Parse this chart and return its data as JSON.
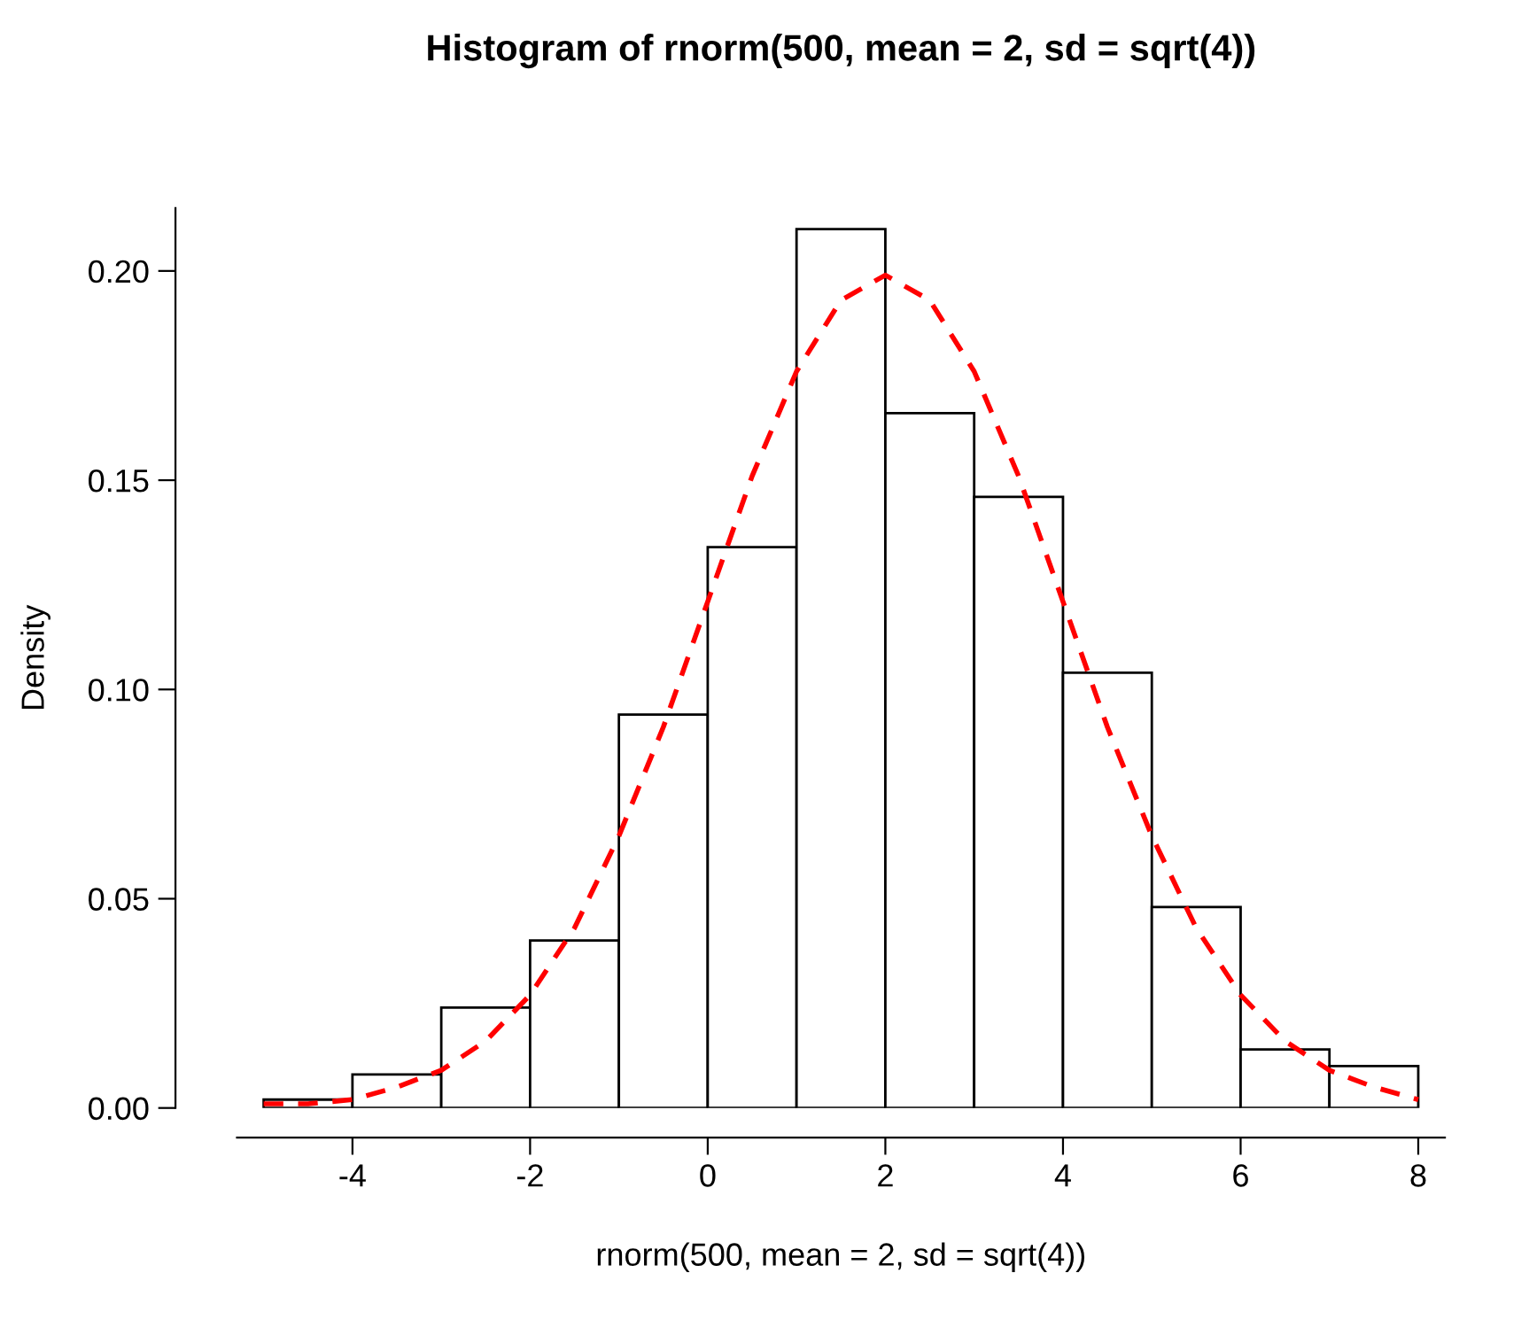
{
  "chart_data": {
    "type": "histogram",
    "title": "Histogram of rnorm(500, mean = 2, sd = sqrt(4))",
    "xlabel": "rnorm(500, mean = 2, sd = sqrt(4))",
    "ylabel": "Density",
    "bins": [
      -5,
      -4,
      -3,
      -2,
      -1,
      0,
      1,
      2,
      3,
      4,
      5,
      6,
      7,
      8
    ],
    "values": [
      0.002,
      0.008,
      0.024,
      0.04,
      0.094,
      0.134,
      0.21,
      0.166,
      0.146,
      0.104,
      0.048,
      0.014,
      0.01
    ],
    "color": "#ffffff",
    "series": [
      {
        "type": "line",
        "color": "#ff0000",
        "line_style": "dashed",
        "x": [
          -5,
          -4.5,
          -4,
          -3.5,
          -3,
          -2.5,
          -2,
          -1.5,
          -1,
          -0.5,
          0,
          0.5,
          1,
          1.5,
          2,
          2.5,
          3,
          3.5,
          4,
          4.5,
          5,
          5.5,
          6,
          6.5,
          7,
          7.5,
          8
        ],
        "values": [
          0.001,
          0.001,
          0.002,
          0.005,
          0.009,
          0.016,
          0.027,
          0.043,
          0.065,
          0.091,
          0.121,
          0.151,
          0.176,
          0.193,
          0.199,
          0.193,
          0.176,
          0.151,
          0.121,
          0.091,
          0.065,
          0.043,
          0.027,
          0.016,
          0.009,
          0.005,
          0.002
        ]
      }
    ],
    "xlim": [
      -5.3,
      8.3
    ],
    "ylim": [
      0,
      0.215
    ],
    "xticks": [
      -4,
      -2,
      0,
      2,
      4,
      6,
      8
    ],
    "yticks": [
      {
        "value": 0,
        "label": "0.00"
      },
      {
        "value": 0.05,
        "label": "0.05"
      },
      {
        "value": 0.1,
        "label": "0.10"
      },
      {
        "value": 0.15,
        "label": "0.15"
      },
      {
        "value": 0.2,
        "label": "0.20"
      }
    ],
    "grid": false
  }
}
